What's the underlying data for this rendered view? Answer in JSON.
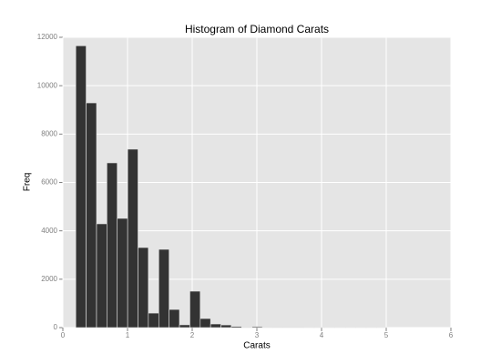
{
  "chart_data": {
    "type": "histogram",
    "title": "Histogram of Diamond Carats",
    "x_label": "Carats",
    "y_label": "Freq",
    "bins": [
      0.2,
      0.36,
      0.521,
      0.681,
      0.841,
      1.002,
      1.162,
      1.322,
      1.483,
      1.643,
      1.803,
      1.964,
      2.124,
      2.284,
      2.445,
      2.605,
      2.765,
      2.926,
      3.086,
      3.246,
      3.407,
      3.567,
      3.727,
      3.888,
      4.048,
      4.208,
      4.369,
      4.529,
      4.689,
      4.85,
      5.01
    ],
    "values": [
      11650,
      9290,
      4290,
      6810,
      4515,
      7375,
      3310,
      600,
      3235,
      750,
      115,
      1505,
      375,
      150,
      110,
      50,
      20,
      40,
      10,
      5,
      3,
      3,
      2,
      2,
      1,
      1,
      1,
      1,
      1,
      1
    ],
    "color": "#333333",
    "xlim": [
      0,
      6
    ],
    "xticks": [
      0,
      1,
      2,
      3,
      4,
      5,
      6
    ],
    "ylim": [
      0,
      12000
    ],
    "yticks": [
      0,
      2000,
      4000,
      6000,
      8000,
      10000,
      12000
    ],
    "grid": true
  }
}
